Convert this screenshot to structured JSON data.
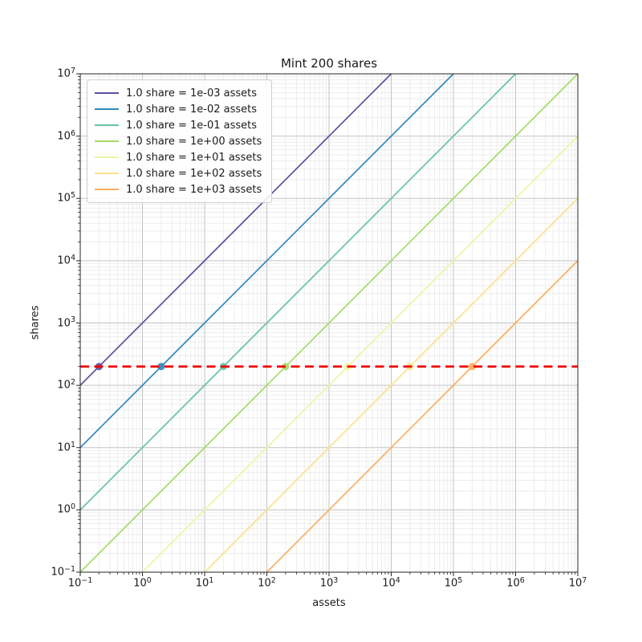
{
  "figure": {
    "background": "#ffffff"
  },
  "chart_data": {
    "type": "line",
    "title": "Mint 200 shares",
    "xlabel": "assets",
    "ylabel": "shares",
    "x_scale": "log",
    "y_scale": "log",
    "x_range_exponents": [
      -1,
      7
    ],
    "y_range_exponents": [
      -1,
      7
    ],
    "x_tick_labels": [
      "10^−1",
      "10^0",
      "10^1",
      "10^2",
      "10^3",
      "10^4",
      "10^5",
      "10^6",
      "10^7"
    ],
    "y_tick_labels": [
      "10^−1",
      "10^0",
      "10^1",
      "10^2",
      "10^3",
      "10^4",
      "10^5",
      "10^6",
      "10^7"
    ],
    "grid": {
      "major": true,
      "minor": true,
      "major_color": "#c3c3c3",
      "minor_color": "#e7e7e7"
    },
    "legend_position": "upper left",
    "mint_line": {
      "shares": 200,
      "color": "#ee0000",
      "style": "dashed"
    },
    "series": [
      {
        "label": "1.0 share = 1e-03 assets",
        "color": "#5e4fa2",
        "assets_per_share": 0.001,
        "marker": {
          "assets": 0.2,
          "shares": 200
        }
      },
      {
        "label": "1.0 share = 1e-02 assets",
        "color": "#3288bd",
        "assets_per_share": 0.01,
        "marker": {
          "assets": 2,
          "shares": 200
        }
      },
      {
        "label": "1.0 share = 1e-01 assets",
        "color": "#66c2a5",
        "assets_per_share": 0.1,
        "marker": {
          "assets": 20,
          "shares": 200
        }
      },
      {
        "label": "1.0 share = 1e+00 assets",
        "color": "#a6d96a",
        "assets_per_share": 1,
        "marker": {
          "assets": 200,
          "shares": 200
        }
      },
      {
        "label": "1.0 share = 1e+01 assets",
        "color": "#ecf7a0",
        "assets_per_share": 10,
        "marker": {
          "assets": 2000,
          "shares": 200
        }
      },
      {
        "label": "1.0 share = 1e+02 assets",
        "color": "#fee08b",
        "assets_per_share": 100,
        "marker": {
          "assets": 20000,
          "shares": 200
        }
      },
      {
        "label": "1.0 share = 1e+03 assets",
        "color": "#fdae61",
        "assets_per_share": 1000,
        "marker": {
          "assets": 200000,
          "shares": 200
        }
      }
    ]
  }
}
